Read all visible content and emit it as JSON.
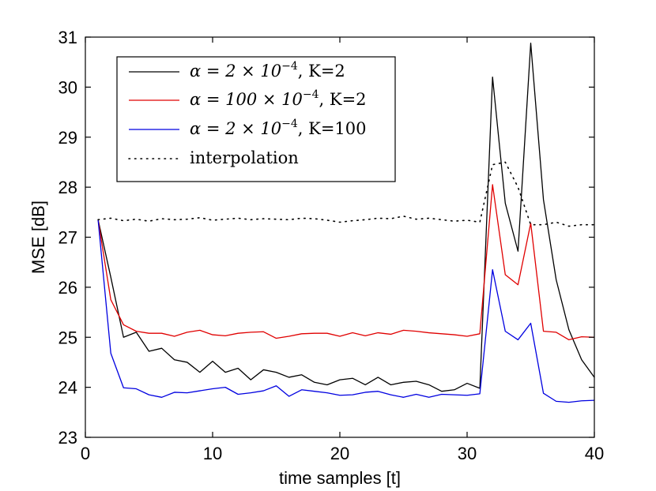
{
  "chart_data": {
    "type": "line",
    "title": "",
    "xlabel": "time samples [t]",
    "ylabel": "MSE [dB]",
    "xlim": [
      0,
      40
    ],
    "ylim": [
      23,
      31
    ],
    "xticks": [
      0,
      10,
      20,
      30,
      40
    ],
    "yticks": [
      23,
      24,
      25,
      26,
      27,
      28,
      29,
      30,
      31
    ],
    "grid": false,
    "legend_position": "top-left",
    "x": [
      1,
      2,
      3,
      4,
      5,
      6,
      7,
      8,
      9,
      10,
      11,
      12,
      13,
      14,
      15,
      16,
      17,
      18,
      19,
      20,
      21,
      22,
      23,
      24,
      25,
      26,
      27,
      28,
      29,
      30,
      31,
      32,
      33,
      34,
      35,
      36,
      37,
      38,
      39,
      40
    ],
    "series": [
      {
        "name": "α = 2 × 10^-4, K=2",
        "legend_math": "α = 2 × 10",
        "legend_exp": "−4",
        "legend_suffix": ", K=2",
        "color": "#000000",
        "style": "solid",
        "values": [
          27.35,
          26.2,
          25.0,
          25.1,
          24.72,
          24.78,
          24.55,
          24.5,
          24.3,
          24.52,
          24.3,
          24.38,
          24.15,
          24.35,
          24.3,
          24.2,
          24.25,
          24.1,
          24.05,
          24.15,
          24.18,
          24.05,
          24.2,
          24.05,
          24.1,
          24.12,
          24.05,
          23.92,
          23.95,
          24.08,
          23.98,
          30.2,
          27.68,
          26.72,
          30.88,
          27.75,
          26.15,
          25.15,
          24.55,
          24.2
        ]
      },
      {
        "name": "α = 100 × 10^-4, K=2",
        "legend_math": "α = 100 × 10",
        "legend_exp": "−4",
        "legend_suffix": ", K=2",
        "color": "#e00000",
        "style": "solid",
        "values": [
          27.35,
          25.75,
          25.25,
          25.12,
          25.08,
          25.08,
          25.02,
          25.1,
          25.14,
          25.05,
          25.03,
          25.08,
          25.1,
          25.11,
          24.98,
          25.02,
          25.07,
          25.08,
          25.08,
          25.02,
          25.09,
          25.03,
          25.09,
          25.06,
          25.14,
          25.12,
          25.09,
          25.07,
          25.05,
          25.02,
          25.07,
          28.05,
          26.25,
          26.05,
          27.28,
          25.12,
          25.1,
          24.95,
          25.01,
          25.0
        ]
      },
      {
        "name": "α = 2 × 10^-4, K=100",
        "legend_math": "α = 2 × 10",
        "legend_exp": "−4",
        "legend_suffix": ", K=100",
        "color": "#0000e0",
        "style": "solid",
        "values": [
          27.35,
          24.68,
          23.99,
          23.97,
          23.85,
          23.8,
          23.9,
          23.89,
          23.93,
          23.97,
          24.0,
          23.86,
          23.89,
          23.93,
          24.03,
          23.82,
          23.95,
          23.92,
          23.89,
          23.84,
          23.85,
          23.9,
          23.92,
          23.85,
          23.8,
          23.86,
          23.8,
          23.86,
          23.85,
          23.84,
          23.87,
          26.35,
          25.12,
          24.95,
          25.28,
          23.88,
          23.72,
          23.7,
          23.73,
          23.74
        ]
      },
      {
        "name": "interpolation",
        "legend_text": "interpolation",
        "color": "#000000",
        "style": "dotted",
        "values": [
          27.35,
          27.38,
          27.33,
          27.36,
          27.32,
          27.37,
          27.35,
          27.36,
          27.39,
          27.34,
          27.36,
          27.38,
          27.35,
          27.37,
          27.36,
          27.35,
          27.38,
          27.37,
          27.34,
          27.3,
          27.33,
          27.35,
          27.38,
          27.37,
          27.42,
          27.36,
          27.38,
          27.35,
          27.32,
          27.34,
          27.3,
          28.45,
          28.5,
          28.0,
          27.25,
          27.25,
          27.3,
          27.22,
          27.25,
          27.25
        ]
      }
    ]
  }
}
